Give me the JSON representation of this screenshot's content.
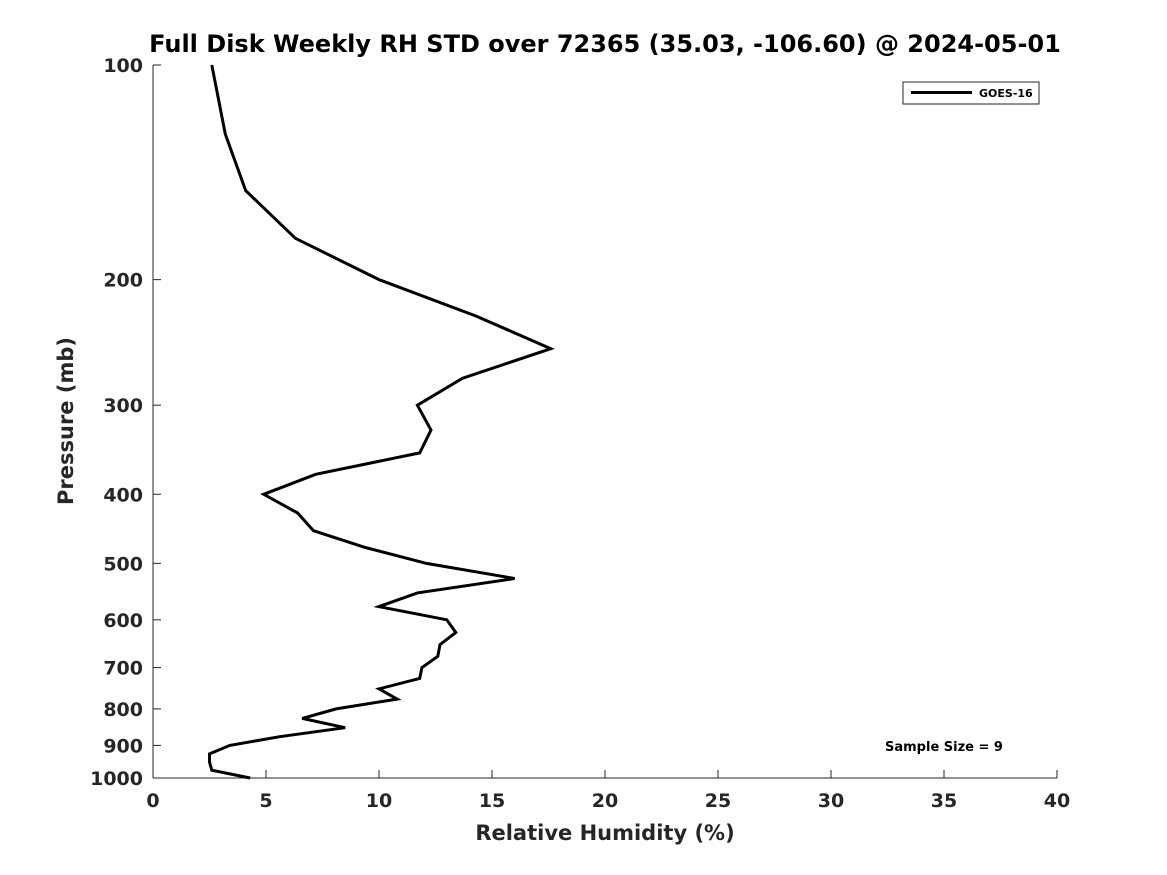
{
  "chart_data": {
    "type": "line",
    "title": "Full Disk Weekly RH STD over 72365 (35.03, -106.60) @ 2024-05-01",
    "xlabel": "Relative Humidity (%)",
    "ylabel": "Pressure (mb)",
    "xlim": [
      0,
      40
    ],
    "ylim": [
      100,
      1000
    ],
    "y_scale": "log",
    "y_reversed": true,
    "x_ticks": [
      0,
      5,
      10,
      15,
      20,
      25,
      30,
      35,
      40
    ],
    "y_ticks": [
      100,
      200,
      300,
      400,
      500,
      600,
      700,
      800,
      900,
      1000
    ],
    "grid": false,
    "legend_position": "top-right",
    "annotation": "Sample Size = 9",
    "series": [
      {
        "name": "GOES-16",
        "color": "#000000",
        "points": [
          [
            2.6,
            100
          ],
          [
            3.2,
            125
          ],
          [
            4.1,
            150
          ],
          [
            6.3,
            175
          ],
          [
            10.0,
            200
          ],
          [
            14.3,
            225
          ],
          [
            17.6,
            250
          ],
          [
            13.7,
            275
          ],
          [
            11.7,
            300
          ],
          [
            12.3,
            325
          ],
          [
            11.8,
            350
          ],
          [
            7.2,
            375
          ],
          [
            4.9,
            400
          ],
          [
            6.4,
            425
          ],
          [
            7.1,
            450
          ],
          [
            9.4,
            475
          ],
          [
            12.1,
            500
          ],
          [
            16.0,
            525
          ],
          [
            11.7,
            550
          ],
          [
            10.0,
            575
          ],
          [
            13.0,
            600
          ],
          [
            13.4,
            625
          ],
          [
            12.7,
            650
          ],
          [
            12.6,
            675
          ],
          [
            11.9,
            700
          ],
          [
            11.8,
            725
          ],
          [
            10.0,
            750
          ],
          [
            10.8,
            775
          ],
          [
            8.1,
            800
          ],
          [
            6.6,
            825
          ],
          [
            8.5,
            850
          ],
          [
            5.6,
            875
          ],
          [
            3.4,
            900
          ],
          [
            2.5,
            925
          ],
          [
            2.5,
            950
          ],
          [
            2.6,
            975
          ],
          [
            4.3,
            1000
          ]
        ]
      }
    ]
  }
}
